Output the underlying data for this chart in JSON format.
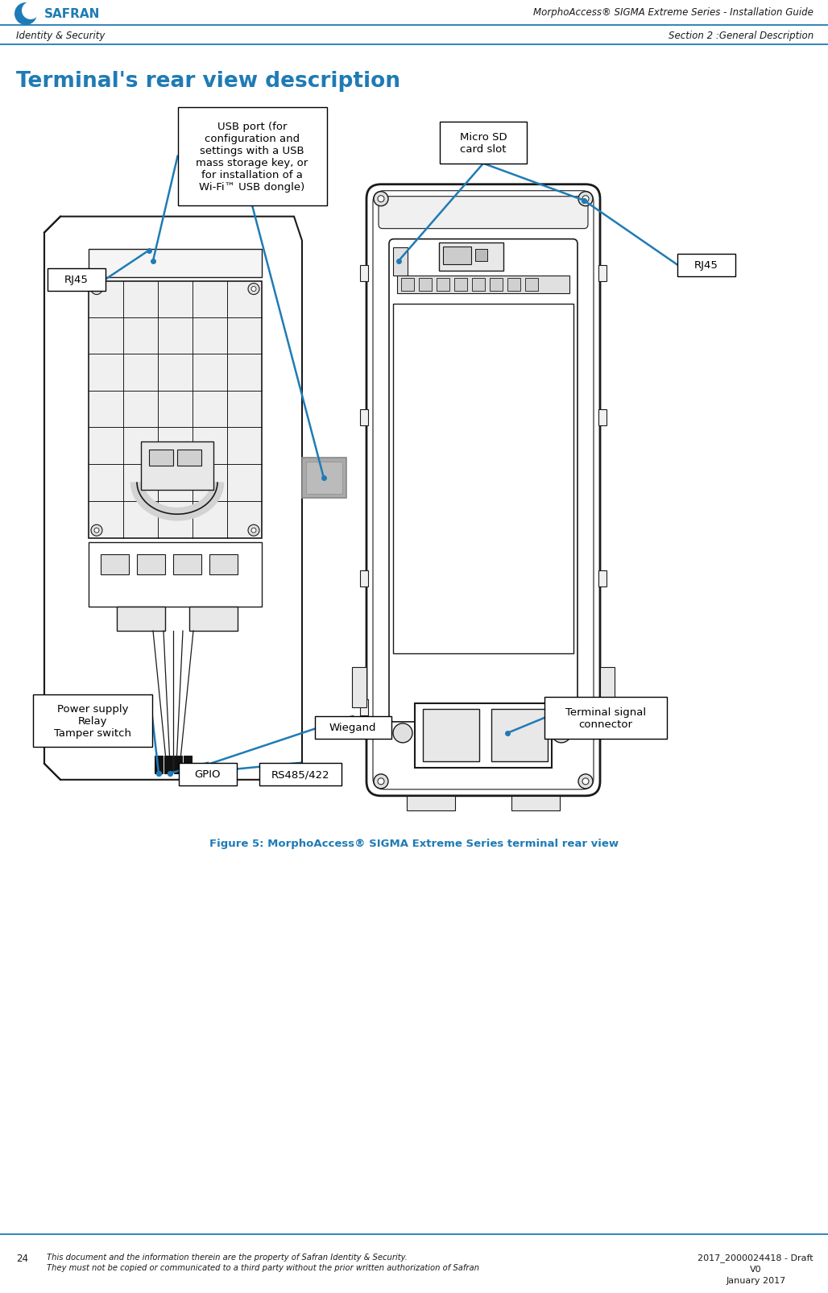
{
  "page_width": 10.28,
  "page_height": 16.06,
  "dpi": 100,
  "bg_color": "#ffffff",
  "header_title": "MorphoAccess® SIGMA Extreme Series - Installation Guide",
  "header_left": "Identity & Security",
  "header_section": "Section 2 :General Description",
  "page_title": "Terminal's rear view description",
  "title_color": "#1F7BB5",
  "figure_caption": "Figure 5: MorphoAccess® SIGMA Extreme Series terminal rear view",
  "figure_caption_color": "#1F7BB5",
  "footer_number": "24",
  "footer_text1": "This document and the information therein are the property of Safran Identity & Security.",
  "footer_text2": "They must not be copied or communicated to a third party without the prior written authorization of Safran",
  "footer_right1": "2017_2000024418 - Draft",
  "footer_right2": "V0",
  "footer_right3": "January 2017",
  "line_color": "#1F7BB5",
  "draw_color": "#1a1a1a",
  "box_color": "#000000"
}
